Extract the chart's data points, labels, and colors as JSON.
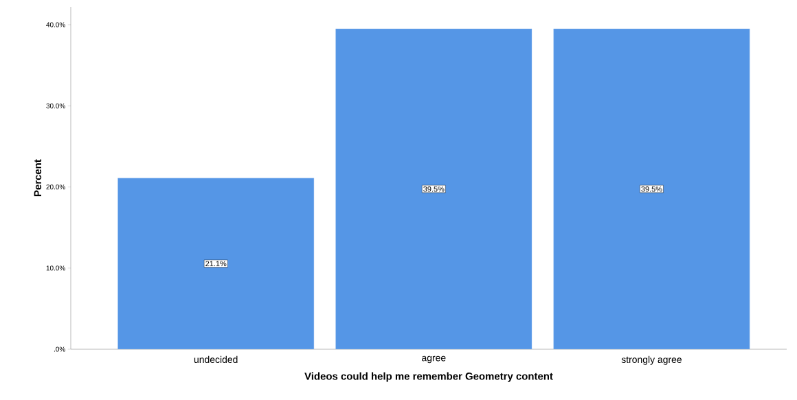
{
  "chart_data": {
    "type": "bar",
    "xlabel": "Videos could help me remember Geometry content",
    "ylabel": "Percent",
    "categories": [
      "undecided",
      "agree",
      "strongly agree"
    ],
    "values": [
      21.1,
      39.5,
      39.5
    ],
    "value_labels": [
      "21.1%",
      "39.5%",
      "39.5%"
    ],
    "color": "#5596e6",
    "ylim": [
      0,
      42.2
    ],
    "yticks": [
      {
        "value": 0,
        "label": ".0%"
      },
      {
        "value": 10,
        "label": "10.0%"
      },
      {
        "value": 20,
        "label": "20.0%"
      },
      {
        "value": 30,
        "label": "30.0%"
      },
      {
        "value": 40,
        "label": "40.0%"
      }
    ]
  }
}
